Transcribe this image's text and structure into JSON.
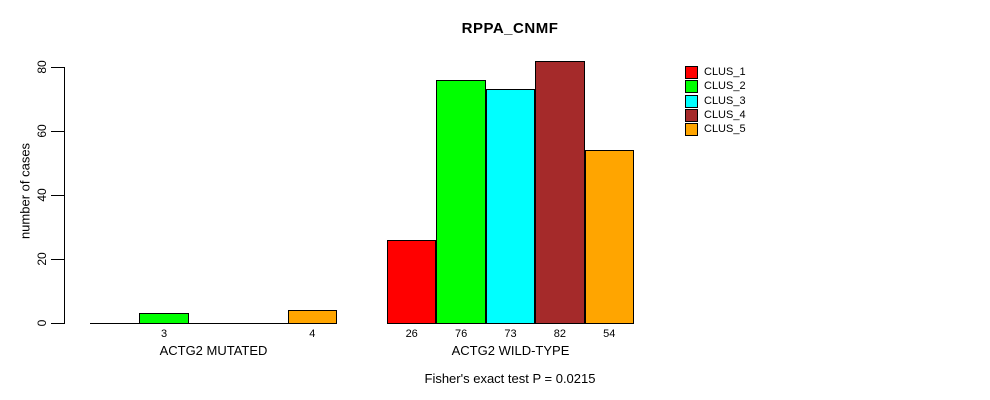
{
  "chart_data": {
    "type": "bar",
    "title": "RPPA_CNMF",
    "ylabel": "number of cases",
    "xlabel": "",
    "footer": "Fisher's exact test P = 0.0215",
    "ylim": [
      0,
      80
    ],
    "yticks": [
      0,
      20,
      40,
      60,
      80
    ],
    "grid": false,
    "legend_position": "right",
    "series": [
      {
        "name": "CLUS_1",
        "color": "#ff0000"
      },
      {
        "name": "CLUS_2",
        "color": "#00ff00"
      },
      {
        "name": "CLUS_3",
        "color": "#00ffff"
      },
      {
        "name": "CLUS_4",
        "color": "#a52a2a"
      },
      {
        "name": "CLUS_5",
        "color": "#ffa500"
      }
    ],
    "groups": [
      {
        "label": "ACTG2 MUTATED",
        "values": [
          0,
          3,
          0,
          0,
          4
        ]
      },
      {
        "label": "ACTG2 WILD-TYPE",
        "values": [
          26,
          76,
          73,
          82,
          54
        ]
      }
    ],
    "bar_value_labels_shown_for_nonzero_only": true
  }
}
